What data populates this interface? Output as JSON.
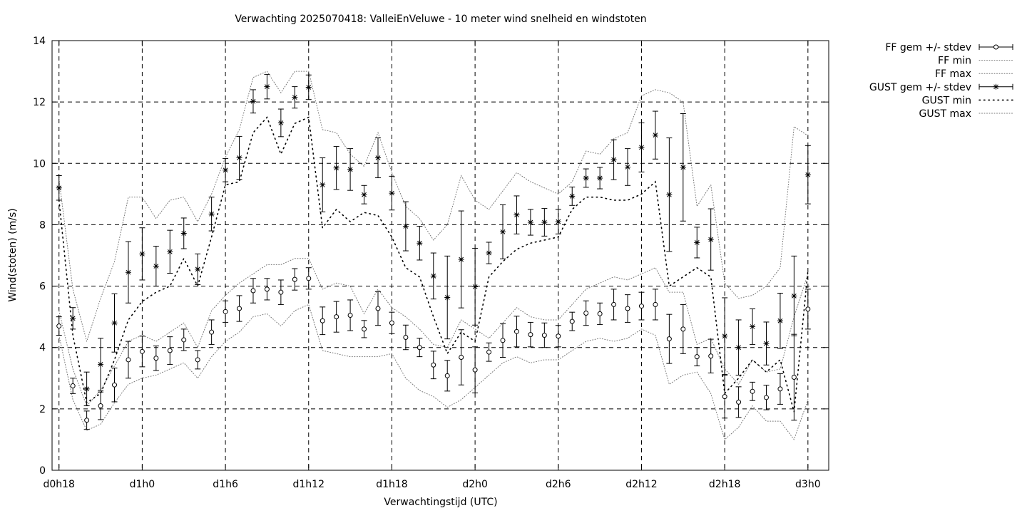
{
  "chart_data": {
    "type": "line",
    "title": "Verwachting 2025070418: ValleiEnVeluwe - 10 meter wind snelheid en windstoten",
    "xlabel": "Verwachtingstijd (UTC)",
    "ylabel": "Wind(stoten) (m/s)",
    "xlim": [
      -0.5,
      55.5
    ],
    "ylim": [
      0,
      14
    ],
    "grid": true,
    "legend_position": "outside-right",
    "x_tick_labels": [
      {
        "x": 0,
        "label": "d0h18"
      },
      {
        "x": 6,
        "label": "d1h0"
      },
      {
        "x": 12,
        "label": "d1h6"
      },
      {
        "x": 18,
        "label": "d1h12"
      },
      {
        "x": 24,
        "label": "d1h18"
      },
      {
        "x": 30,
        "label": "d2h0"
      },
      {
        "x": 36,
        "label": "d2h6"
      },
      {
        "x": 42,
        "label": "d2h12"
      },
      {
        "x": 48,
        "label": "d2h18"
      },
      {
        "x": 54,
        "label": "d3h0"
      }
    ],
    "y_ticks": [
      0,
      2,
      4,
      6,
      8,
      10,
      12,
      14
    ],
    "x": [
      0,
      1,
      2,
      3,
      4,
      5,
      6,
      7,
      8,
      9,
      10,
      11,
      12,
      13,
      14,
      15,
      16,
      17,
      18,
      19,
      20,
      21,
      22,
      23,
      24,
      25,
      26,
      27,
      28,
      29,
      30,
      31,
      32,
      33,
      34,
      35,
      36,
      37,
      38,
      39,
      40,
      41,
      42,
      43,
      44,
      45,
      46,
      47,
      48,
      49,
      50,
      51,
      52,
      53,
      54
    ],
    "series": [
      {
        "name": "FF gem +/- stdev",
        "style": "errorbars-circle",
        "values": [
          4.7,
          2.75,
          1.63,
          2.1,
          2.78,
          3.6,
          3.87,
          3.65,
          3.9,
          4.25,
          3.6,
          4.5,
          5.17,
          5.27,
          5.85,
          5.9,
          5.8,
          6.22,
          6.25,
          4.87,
          5.0,
          5.05,
          4.6,
          5.27,
          4.8,
          4.33,
          4.0,
          3.43,
          3.08,
          3.68,
          3.27,
          3.85,
          4.23,
          4.52,
          4.42,
          4.4,
          4.37,
          4.85,
          5.12,
          5.1,
          5.4,
          5.27,
          5.35,
          5.4,
          4.28,
          4.6,
          3.7,
          3.72,
          2.4,
          2.22,
          2.57,
          2.37,
          2.65,
          3.03,
          5.25
        ],
        "stdev": [
          0.3,
          0.25,
          0.3,
          0.45,
          0.55,
          0.6,
          0.5,
          0.4,
          0.45,
          0.35,
          0.3,
          0.4,
          0.35,
          0.42,
          0.4,
          0.35,
          0.4,
          0.35,
          0.35,
          0.45,
          0.5,
          0.5,
          0.28,
          0.55,
          0.35,
          0.4,
          0.3,
          0.45,
          0.5,
          0.9,
          0.75,
          0.3,
          0.55,
          0.5,
          0.4,
          0.4,
          0.35,
          0.3,
          0.4,
          0.35,
          0.5,
          0.45,
          0.45,
          0.5,
          0.8,
          0.8,
          0.3,
          0.55,
          0.7,
          0.5,
          0.3,
          0.4,
          0.5,
          1.4,
          0.65
        ]
      },
      {
        "name": "FF min",
        "style": "dotted",
        "values": [
          4.4,
          2.3,
          1.3,
          1.5,
          2.2,
          2.8,
          3.0,
          3.1,
          3.3,
          3.5,
          3.0,
          3.7,
          4.2,
          4.5,
          5.0,
          5.1,
          4.7,
          5.2,
          5.4,
          3.9,
          3.8,
          3.7,
          3.7,
          3.7,
          3.8,
          3.0,
          2.6,
          2.4,
          2.05,
          2.3,
          2.7,
          3.1,
          3.5,
          3.7,
          3.5,
          3.6,
          3.6,
          3.9,
          4.2,
          4.3,
          4.2,
          4.3,
          4.6,
          4.4,
          2.8,
          3.1,
          3.2,
          2.5,
          1.0,
          1.4,
          2.1,
          1.6,
          1.6,
          1.0,
          2.3
        ]
      },
      {
        "name": "FF max",
        "style": "dotted",
        "values": [
          5.2,
          3.3,
          2.1,
          2.6,
          3.4,
          4.2,
          4.4,
          4.2,
          4.5,
          4.8,
          4.0,
          5.2,
          5.7,
          6.1,
          6.4,
          6.7,
          6.7,
          6.9,
          6.9,
          5.9,
          6.1,
          6.0,
          5.1,
          5.9,
          5.3,
          5.0,
          4.6,
          4.1,
          4.0,
          4.9,
          4.6,
          4.3,
          4.8,
          5.3,
          5.0,
          4.9,
          4.9,
          5.4,
          5.9,
          6.1,
          6.3,
          6.2,
          6.4,
          6.6,
          5.8,
          5.8,
          4.1,
          4.3,
          3.3,
          2.8,
          3.6,
          3.2,
          3.3,
          5.0,
          6.4
        ]
      },
      {
        "name": "GUST gem +/- stdev",
        "style": "errorbars-star",
        "values": [
          9.2,
          4.95,
          2.65,
          3.45,
          4.8,
          6.45,
          7.05,
          6.65,
          7.12,
          7.72,
          6.55,
          8.35,
          9.78,
          10.18,
          12.02,
          12.5,
          11.32,
          12.15,
          12.48,
          9.3,
          9.85,
          9.8,
          8.98,
          10.18,
          9.03,
          7.95,
          7.4,
          6.33,
          5.63,
          6.87,
          5.98,
          7.08,
          7.77,
          8.32,
          8.08,
          8.08,
          8.1,
          8.93,
          9.52,
          9.52,
          10.12,
          9.88,
          10.52,
          10.92,
          8.98,
          9.87,
          7.42,
          7.52,
          4.37,
          4.0,
          4.68,
          4.13,
          4.87,
          5.68,
          9.63
        ],
        "stdev": [
          0.4,
          0.35,
          0.55,
          0.85,
          0.95,
          1.0,
          0.85,
          0.65,
          0.7,
          0.5,
          0.5,
          0.55,
          0.38,
          0.7,
          0.38,
          0.4,
          0.45,
          0.35,
          0.4,
          0.88,
          0.7,
          0.68,
          0.3,
          0.65,
          0.55,
          0.8,
          0.55,
          0.75,
          1.35,
          1.58,
          1.25,
          0.35,
          0.88,
          0.62,
          0.42,
          0.45,
          0.4,
          0.3,
          0.3,
          0.35,
          0.65,
          0.6,
          0.8,
          0.78,
          1.85,
          1.75,
          0.5,
          1.0,
          1.25,
          0.9,
          0.58,
          0.7,
          0.9,
          1.3,
          0.95
        ]
      },
      {
        "name": "GUST min",
        "style": "dotted-sparse",
        "values": [
          8.8,
          4.4,
          2.2,
          2.5,
          3.6,
          4.9,
          5.5,
          5.8,
          6.0,
          6.9,
          6.0,
          7.6,
          9.3,
          9.4,
          11.0,
          11.5,
          10.3,
          11.3,
          11.5,
          7.9,
          8.5,
          8.1,
          8.4,
          8.3,
          7.6,
          6.6,
          6.3,
          5.0,
          3.8,
          4.5,
          4.2,
          6.3,
          6.8,
          7.2,
          7.4,
          7.5,
          7.6,
          8.5,
          8.9,
          8.9,
          8.8,
          8.8,
          9.0,
          9.4,
          6.0,
          6.3,
          6.6,
          6.3,
          2.5,
          3.0,
          3.6,
          3.2,
          3.6,
          1.9,
          6.5
        ]
      },
      {
        "name": "GUST max",
        "style": "dotted",
        "values": [
          9.5,
          5.9,
          4.2,
          5.6,
          6.8,
          8.9,
          8.9,
          8.2,
          8.8,
          8.9,
          8.1,
          9.0,
          10.2,
          11.1,
          12.8,
          13.0,
          12.3,
          13.0,
          13.0,
          11.1,
          11.0,
          10.3,
          9.9,
          11.0,
          9.7,
          8.6,
          8.2,
          7.5,
          8.0,
          9.6,
          8.8,
          8.5,
          9.1,
          9.7,
          9.4,
          9.2,
          9.0,
          9.4,
          10.4,
          10.3,
          10.8,
          11.0,
          12.2,
          12.4,
          12.3,
          12.0,
          8.6,
          9.3,
          6.1,
          5.6,
          5.7,
          6.0,
          6.6,
          11.2,
          10.9
        ]
      }
    ]
  }
}
